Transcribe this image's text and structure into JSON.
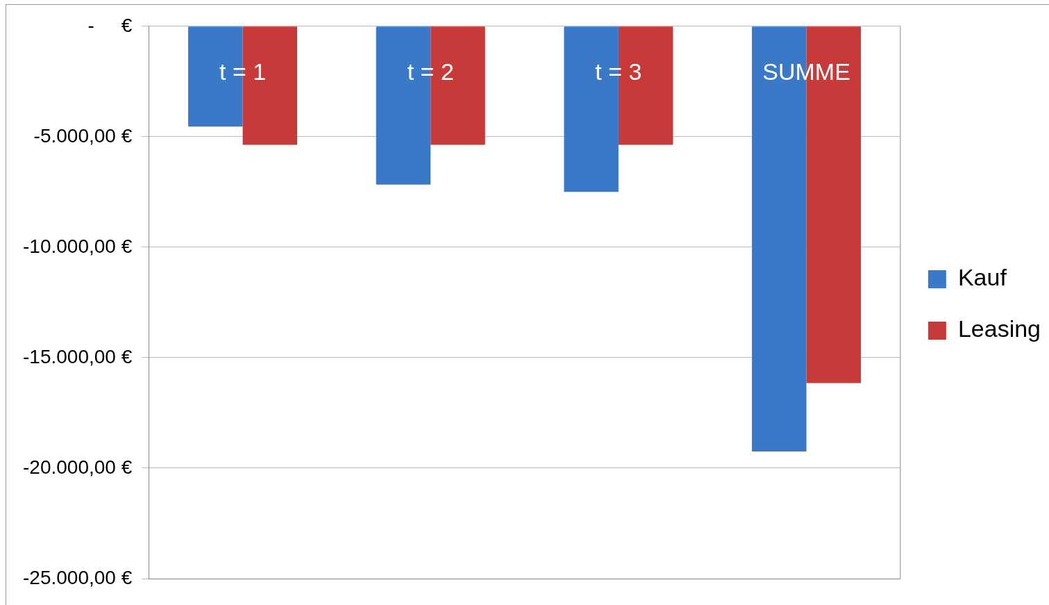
{
  "chart_data": {
    "type": "bar",
    "categories": [
      "t = 1",
      "t = 2",
      "t = 3",
      "SUMME"
    ],
    "series": [
      {
        "name": "Kauf",
        "color": "#3a78c8",
        "values": [
          -4540,
          -7170,
          -7500,
          -19250
        ]
      },
      {
        "name": "Leasing",
        "color": "#c83a3a",
        "values": [
          -5370,
          -5370,
          -5370,
          -16150
        ]
      }
    ],
    "ylim": [
      -25000,
      0
    ],
    "yticks": [
      {
        "value": -25000,
        "label": "-25.000,00 €"
      },
      {
        "value": -20000,
        "label": "-20.000,00 €"
      },
      {
        "value": -15000,
        "label": "-15.000,00 €"
      },
      {
        "value": -10000,
        "label": "-10.000,00 €"
      },
      {
        "value": -5000,
        "label": "-5.000,00 €"
      },
      {
        "value": 0,
        "label": "-     €"
      }
    ],
    "grid": "y",
    "legend": "right"
  }
}
